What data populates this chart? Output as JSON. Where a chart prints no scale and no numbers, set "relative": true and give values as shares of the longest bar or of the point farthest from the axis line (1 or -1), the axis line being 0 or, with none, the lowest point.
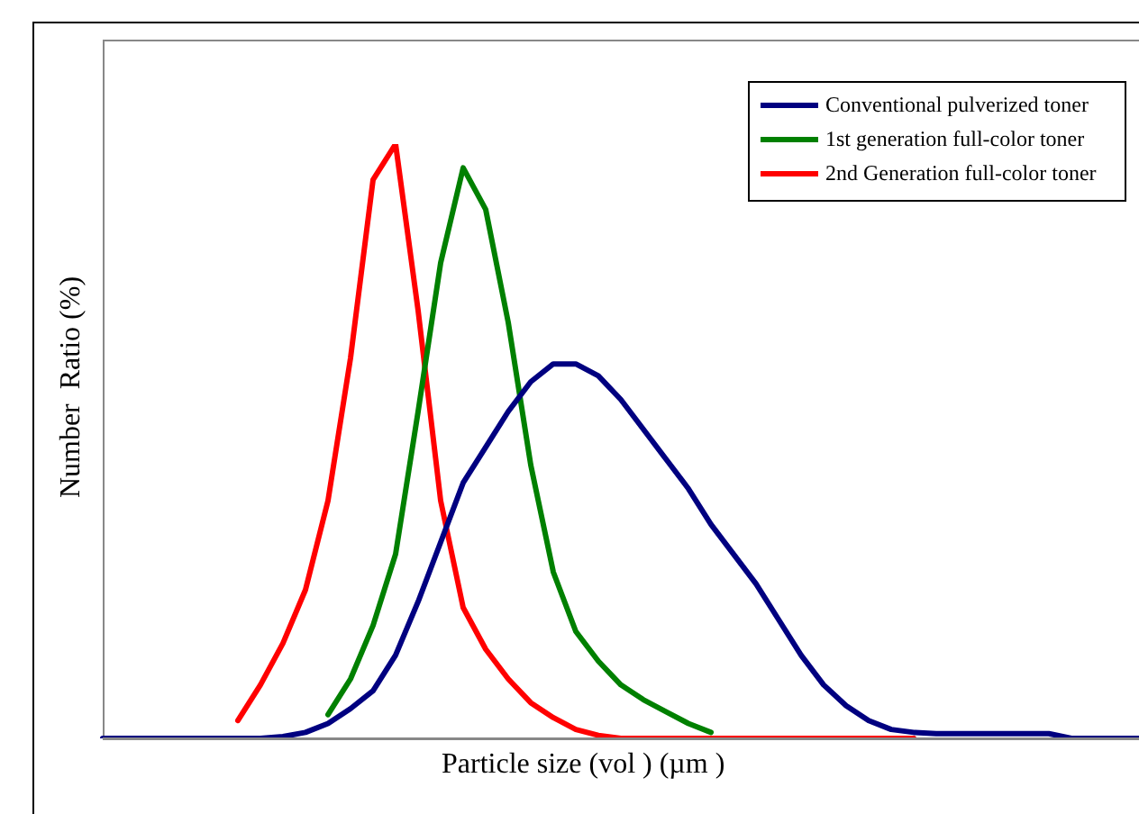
{
  "chart_data": {
    "type": "line",
    "relative": true,
    "xlabel": "Particle size (vol ) (µm )",
    "ylabel": "Number  Ratio (%)",
    "legend": "top right",
    "marker": "none",
    "line_style": "solid",
    "grid": false,
    "categories": [
      null,
      null,
      null,
      null,
      null,
      null,
      null,
      null,
      null,
      null,
      null,
      null,
      null,
      null,
      null,
      null,
      null,
      null,
      null,
      null,
      null,
      null,
      null,
      null,
      null,
      null,
      null,
      null,
      null,
      null,
      null,
      null,
      null,
      null,
      null,
      null,
      null,
      null,
      null,
      null,
      null,
      null,
      null,
      null,
      null,
      null,
      null
    ],
    "series": [
      {
        "name": "Conventional pulverized toner",
        "color": "#000080",
        "values": [
          0,
          0,
          0,
          0,
          0,
          0,
          0,
          0,
          0.003,
          0.01,
          0.025,
          0.05,
          0.08,
          0.14,
          0.23,
          0.33,
          0.43,
          0.49,
          0.55,
          0.6,
          0.63,
          0.63,
          0.61,
          0.57,
          0.52,
          0.47,
          0.42,
          0.36,
          0.31,
          0.26,
          0.2,
          0.14,
          0.09,
          0.055,
          0.03,
          0.015,
          0.01,
          0.008,
          0.008,
          0.008,
          0.008,
          0.008,
          0.008,
          0,
          0,
          0,
          0
        ]
      },
      {
        "name": "1st generation full-color toner",
        "color": "#008000",
        "values": [
          null,
          null,
          null,
          null,
          null,
          null,
          null,
          null,
          null,
          null,
          0.04,
          0.1,
          0.19,
          0.31,
          0.55,
          0.8,
          0.96,
          0.89,
          0.7,
          0.46,
          0.28,
          0.18,
          0.13,
          0.09,
          0.065,
          0.045,
          0.025,
          0.01,
          null,
          null,
          null,
          null,
          null,
          null,
          null,
          null,
          null,
          null,
          null,
          null,
          null,
          null,
          null,
          null,
          null,
          null,
          null
        ]
      },
      {
        "name": "2nd Generation full-color toner",
        "color": "#ff0000",
        "values": [
          null,
          null,
          null,
          null,
          null,
          null,
          0.03,
          0.09,
          0.16,
          0.25,
          0.4,
          0.64,
          0.94,
          1,
          0.72,
          0.4,
          0.22,
          0.15,
          0.1,
          0.06,
          0.035,
          0.015,
          0.005,
          0,
          0,
          0,
          0,
          0,
          0,
          0,
          0,
          0,
          0,
          0,
          0,
          0,
          0,
          null,
          null,
          null,
          null,
          null,
          null,
          null,
          null,
          null,
          null
        ]
      }
    ]
  }
}
